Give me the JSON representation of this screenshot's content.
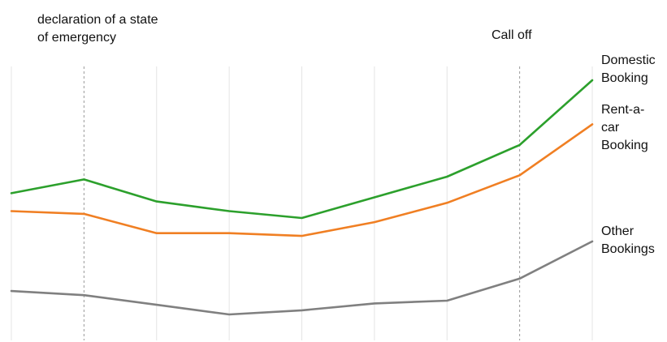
{
  "chart_data": {
    "type": "line",
    "x": [
      "",
      "",
      "",
      "",
      "",
      "",
      "",
      "",
      ""
    ],
    "series": [
      {
        "name": "Domestic Booking",
        "label_lines": [
          "Domestic",
          "Booking"
        ],
        "color": "#2ca02c",
        "values": [
          108,
          118,
          102,
          95,
          90,
          105,
          120,
          143,
          190
        ]
      },
      {
        "name": "Rent-a-car Booking",
        "label_lines": [
          "Rent-a-",
          "car",
          "Booking"
        ],
        "color": "#f07f23",
        "values": [
          95,
          93,
          79,
          79,
          77,
          87,
          101,
          121,
          158
        ]
      },
      {
        "name": "Other Bookings",
        "label_lines": [
          "Other",
          "Bookings"
        ],
        "color": "#808080",
        "values": [
          37,
          34,
          27,
          20,
          23,
          28,
          30,
          46,
          73
        ]
      }
    ],
    "ylim": [
      0,
      200
    ],
    "grid": true,
    "annotations": [
      {
        "x_index": 1,
        "text_lines": [
          "declaration of a state",
          "of emergency"
        ]
      },
      {
        "x_index": 7,
        "text_lines": [
          "Call off"
        ]
      }
    ]
  }
}
